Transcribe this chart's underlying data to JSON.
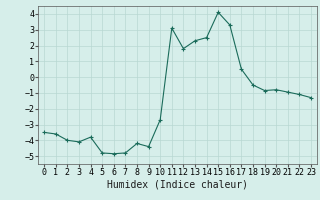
{
  "xlabel": "Humidex (Indice chaleur)",
  "background_color": "#d6eeea",
  "grid_color": "#b8d8d2",
  "line_color": "#1a6b5a",
  "marker_color": "#1a6b5a",
  "xlim": [
    -0.5,
    23.5
  ],
  "ylim": [
    -5.5,
    4.5
  ],
  "yticks": [
    -5,
    -4,
    -3,
    -2,
    -1,
    0,
    1,
    2,
    3,
    4
  ],
  "xticks": [
    0,
    1,
    2,
    3,
    4,
    5,
    6,
    7,
    8,
    9,
    10,
    11,
    12,
    13,
    14,
    15,
    16,
    17,
    18,
    19,
    20,
    21,
    22,
    23
  ],
  "x": [
    0,
    1,
    2,
    3,
    4,
    5,
    6,
    7,
    8,
    9,
    10,
    11,
    12,
    13,
    14,
    15,
    16,
    17,
    18,
    19,
    20,
    21,
    22,
    23
  ],
  "y": [
    -3.5,
    -3.6,
    -4.0,
    -4.1,
    -3.8,
    -4.8,
    -4.85,
    -4.8,
    -4.2,
    -4.4,
    -2.7,
    3.1,
    1.8,
    2.3,
    2.5,
    4.1,
    3.3,
    0.5,
    -0.5,
    -0.85,
    -0.8,
    -0.95,
    -1.1,
    -1.3
  ],
  "xlabel_fontsize": 7,
  "tick_fontsize": 6
}
